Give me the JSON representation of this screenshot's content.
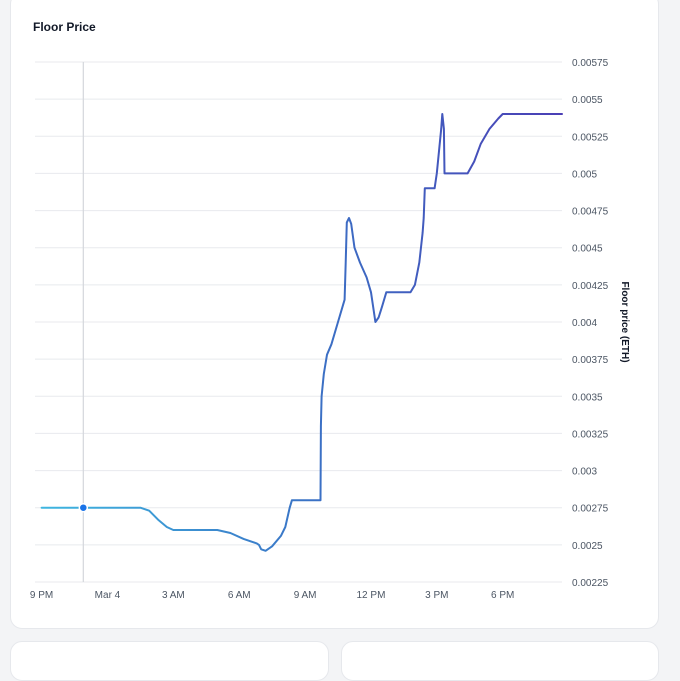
{
  "card": {
    "title": "Floor Price"
  },
  "chart_data": {
    "type": "line",
    "title": "Floor Price",
    "xlabel": "",
    "ylabel": "Floor price (ETH)",
    "ylim": [
      0.00225,
      0.00575
    ],
    "xlim_hours": [
      -3.3,
      20.7
    ],
    "y_ticks": [
      "0.00575",
      "0.0055",
      "0.00525",
      "0.005",
      "0.00475",
      "0.0045",
      "0.00425",
      "0.004",
      "0.00375",
      "0.0035",
      "0.00325",
      "0.003",
      "0.00275",
      "0.0025",
      "0.00225"
    ],
    "x_ticks": [
      {
        "label": "9 PM",
        "t": -3
      },
      {
        "label": "Mar 4",
        "t": 0
      },
      {
        "label": "3 AM",
        "t": 3
      },
      {
        "label": "6 AM",
        "t": 6
      },
      {
        "label": "9 AM",
        "t": 9
      },
      {
        "label": "12 PM",
        "t": 12
      },
      {
        "label": "3 PM",
        "t": 15
      },
      {
        "label": "6 PM",
        "t": 18
      }
    ],
    "cursor_time": -1.1,
    "series": [
      {
        "name": "Floor price",
        "points": [
          [
            -3.0,
            0.00275
          ],
          [
            -2.0,
            0.00275
          ],
          [
            -1.1,
            0.00275
          ],
          [
            0.0,
            0.00275
          ],
          [
            1.5,
            0.00275
          ],
          [
            1.9,
            0.00273
          ],
          [
            2.3,
            0.00267
          ],
          [
            2.7,
            0.00262
          ],
          [
            3.0,
            0.0026
          ],
          [
            3.5,
            0.0026
          ],
          [
            4.5,
            0.0026
          ],
          [
            5.0,
            0.0026
          ],
          [
            5.6,
            0.00258
          ],
          [
            6.2,
            0.00254
          ],
          [
            6.8,
            0.00251
          ],
          [
            6.9,
            0.0025
          ],
          [
            7.0,
            0.00247
          ],
          [
            7.2,
            0.00246
          ],
          [
            7.5,
            0.00249
          ],
          [
            7.9,
            0.00256
          ],
          [
            8.1,
            0.00262
          ],
          [
            8.3,
            0.00275
          ],
          [
            8.4,
            0.0028
          ],
          [
            9.0,
            0.0028
          ],
          [
            9.7,
            0.0028
          ],
          [
            9.72,
            0.0033
          ],
          [
            9.75,
            0.0035
          ],
          [
            9.85,
            0.00365
          ],
          [
            10.0,
            0.00378
          ],
          [
            10.2,
            0.00385
          ],
          [
            10.5,
            0.004
          ],
          [
            10.8,
            0.00415
          ],
          [
            10.85,
            0.0044
          ],
          [
            10.9,
            0.00467
          ],
          [
            11.0,
            0.0047
          ],
          [
            11.1,
            0.00466
          ],
          [
            11.25,
            0.0045
          ],
          [
            11.5,
            0.0044
          ],
          [
            11.8,
            0.0043
          ],
          [
            12.0,
            0.0042
          ],
          [
            12.1,
            0.0041
          ],
          [
            12.2,
            0.004
          ],
          [
            12.35,
            0.00403
          ],
          [
            12.5,
            0.0041
          ],
          [
            12.7,
            0.0042
          ],
          [
            13.0,
            0.0042
          ],
          [
            13.5,
            0.0042
          ],
          [
            13.8,
            0.0042
          ],
          [
            14.0,
            0.00425
          ],
          [
            14.2,
            0.0044
          ],
          [
            14.35,
            0.0046
          ],
          [
            14.4,
            0.0047
          ],
          [
            14.45,
            0.0049
          ],
          [
            14.6,
            0.0049
          ],
          [
            14.9,
            0.0049
          ],
          [
            15.0,
            0.005
          ],
          [
            15.1,
            0.00515
          ],
          [
            15.2,
            0.0053
          ],
          [
            15.25,
            0.0054
          ],
          [
            15.32,
            0.0053
          ],
          [
            15.35,
            0.005
          ],
          [
            15.6,
            0.005
          ],
          [
            16.0,
            0.005
          ],
          [
            16.4,
            0.005
          ],
          [
            16.7,
            0.00508
          ],
          [
            17.0,
            0.0052
          ],
          [
            17.4,
            0.0053
          ],
          [
            17.8,
            0.00537
          ],
          [
            18.0,
            0.0054
          ],
          [
            19.0,
            0.0054
          ],
          [
            20.7,
            0.0054
          ]
        ]
      }
    ],
    "colors": {
      "line_start": "#3fb6e0",
      "line_mid": "#3a74c6",
      "line_end": "#4b3fb5",
      "marker": "#1a73e8",
      "cursor": "#d4d7dc",
      "grid": "#e8eaee"
    }
  }
}
